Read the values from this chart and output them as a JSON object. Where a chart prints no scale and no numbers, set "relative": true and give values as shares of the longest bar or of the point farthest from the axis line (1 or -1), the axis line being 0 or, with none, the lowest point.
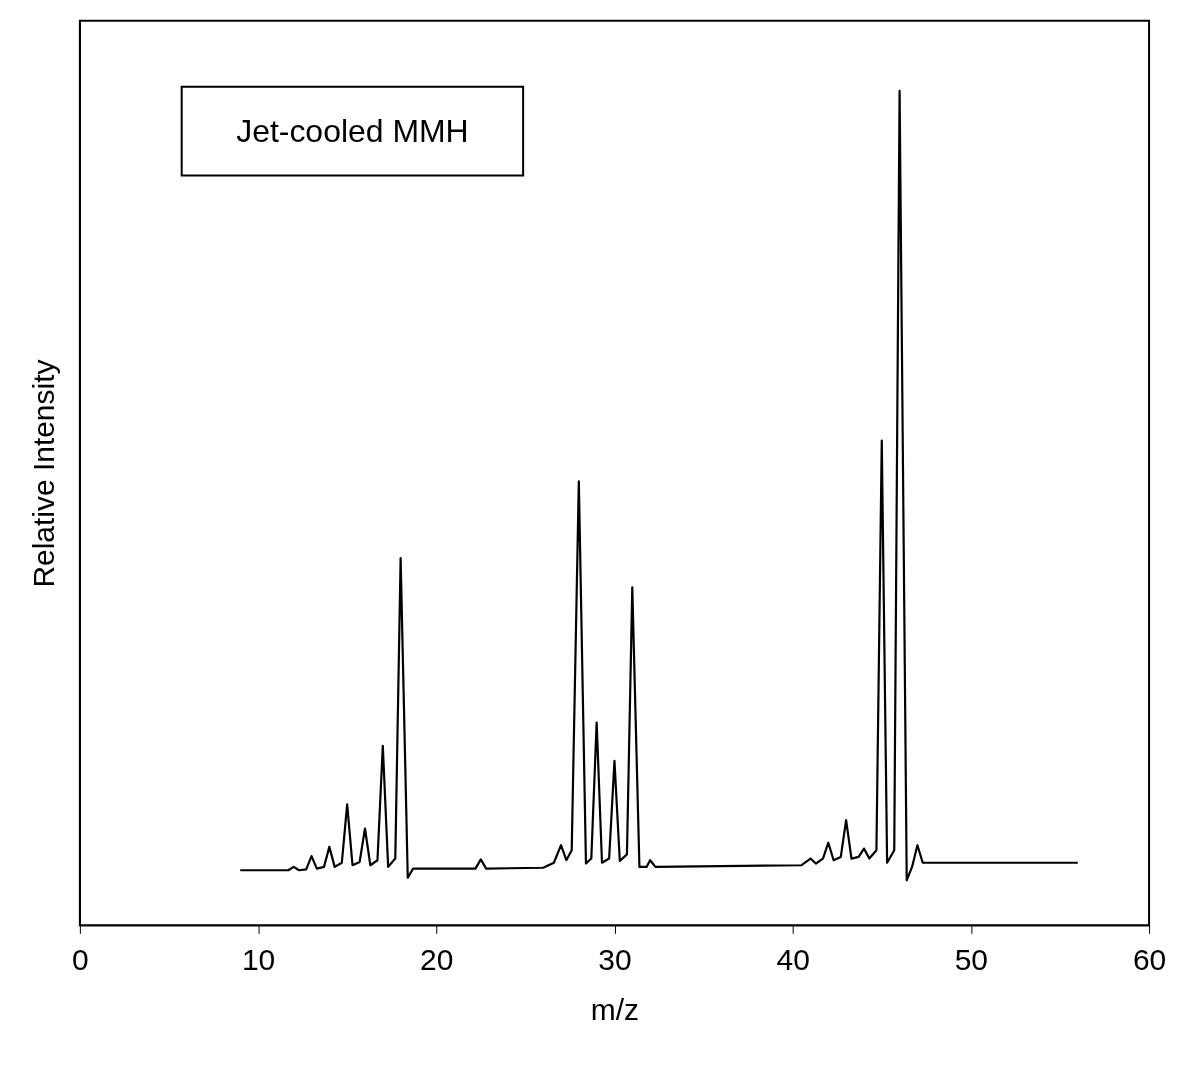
{
  "chart_data": {
    "type": "line",
    "relative": true,
    "xlabel": "m/z",
    "ylabel": "Relative Intensity",
    "annotations": [
      "Jet-cooled MMH"
    ],
    "xlim": [
      0,
      60
    ],
    "xticks": [
      0,
      10,
      20,
      30,
      40,
      50,
      60
    ],
    "grid": false,
    "marker": "none",
    "line_style": "solid",
    "series": [
      {
        "color": "#000000",
        "x": [
          9,
          11.7,
          12,
          12.3,
          12.7,
          13,
          13.3,
          13.7,
          14,
          14.3,
          14.7,
          15,
          15.3,
          15.7,
          16,
          16.3,
          16.7,
          17,
          17.3,
          17.7,
          18,
          18.4,
          18.7,
          22.2,
          22.5,
          22.8,
          26,
          26.6,
          27,
          27.3,
          27.6,
          28,
          28.4,
          28.7,
          29,
          29.3,
          29.7,
          30,
          30.3,
          30.7,
          31,
          31.4,
          31.8,
          32,
          32.3,
          40.5,
          41,
          41.3,
          41.7,
          42,
          42.3,
          42.7,
          43,
          43.3,
          43.7,
          44,
          44.3,
          44.7,
          45,
          45.3,
          45.7,
          46,
          46.4,
          46.7,
          47,
          47.3,
          56
        ],
        "values": [
          0.066,
          0.066,
          0.07,
          0.066,
          0.067,
          0.083,
          0.068,
          0.07,
          0.094,
          0.07,
          0.075,
          0.145,
          0.072,
          0.076,
          0.116,
          0.072,
          0.078,
          0.215,
          0.07,
          0.08,
          0.44,
          0.057,
          0.068,
          0.068,
          0.079,
          0.068,
          0.069,
          0.075,
          0.096,
          0.078,
          0.09,
          0.532,
          0.074,
          0.08,
          0.243,
          0.075,
          0.08,
          0.197,
          0.077,
          0.085,
          0.405,
          0.07,
          0.07,
          0.078,
          0.07,
          0.072,
          0.08,
          0.074,
          0.08,
          0.099,
          0.078,
          0.082,
          0.126,
          0.08,
          0.082,
          0.092,
          0.08,
          0.09,
          0.581,
          0.075,
          0.09,
          1,
          0.054,
          0.07,
          0.096,
          0.075,
          0.075
        ]
      }
    ]
  }
}
